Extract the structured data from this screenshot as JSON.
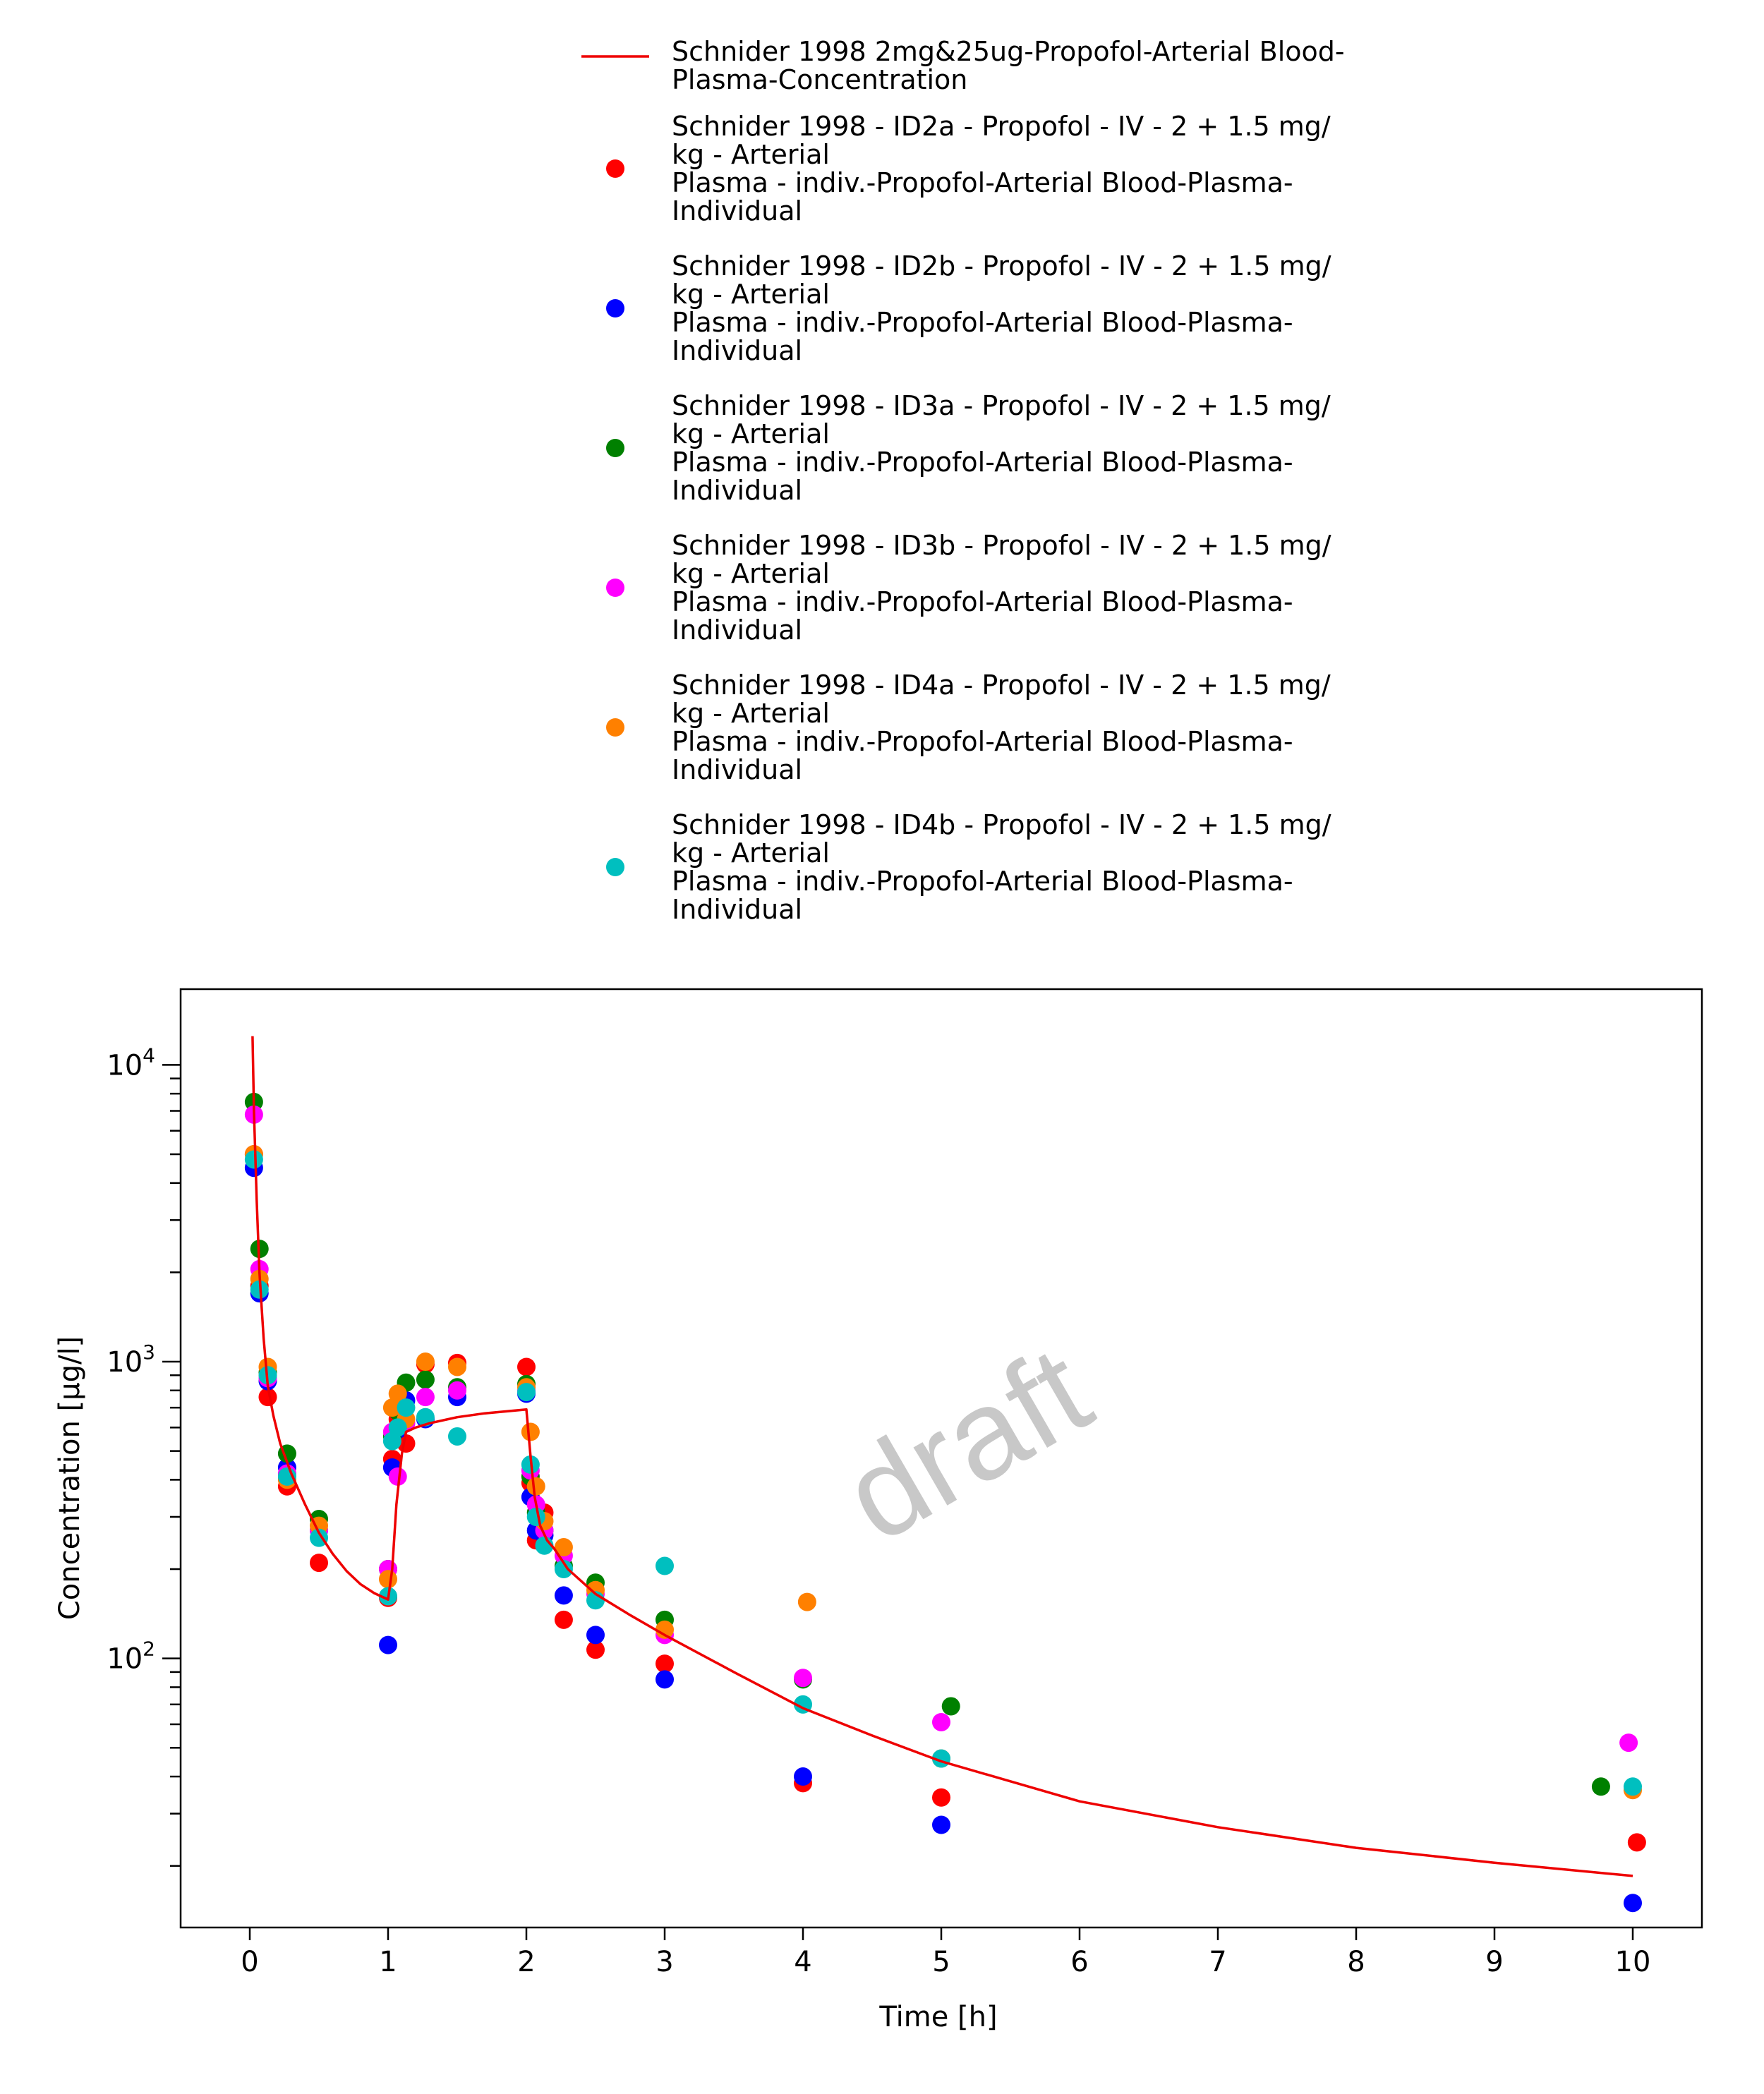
{
  "chart_data": {
    "type": "scatter",
    "title": "",
    "xlabel": "Time [h]",
    "ylabel": "Concentration [µg/l]",
    "x_scale": "linear",
    "y_scale": "log",
    "xlim": [
      -0.5,
      10.5
    ],
    "ylim": [
      12.4,
      18000
    ],
    "x_ticks": [
      0,
      1,
      2,
      3,
      4,
      5,
      6,
      7,
      8,
      9,
      10
    ],
    "y_ticks": [
      {
        "value": 100,
        "base": "10",
        "exp": "2"
      },
      {
        "value": 1000,
        "base": "10",
        "exp": "3"
      },
      {
        "value": 10000,
        "base": "10",
        "exp": "4"
      }
    ],
    "grid": false,
    "legend_position": "above plot",
    "watermark": "draft",
    "simulation": {
      "name": "Schnider 1998 2mg&25ug-Propofol-Arterial Blood-Plasma-Concentration",
      "legend_lines": [
        "Schnider 1998 2mg&25ug-Propofol-Arterial Blood-",
        "Plasma-Concentration"
      ],
      "color": "#ee0000",
      "x": [
        0.02,
        0.03,
        0.05,
        0.07,
        0.1,
        0.13,
        0.17,
        0.22,
        0.3,
        0.4,
        0.5,
        0.6,
        0.7,
        0.8,
        0.9,
        1.0,
        1.03,
        1.06,
        1.1,
        1.13,
        1.2,
        1.3,
        1.5,
        1.7,
        1.85,
        2.0,
        2.03,
        2.06,
        2.1,
        2.15,
        2.2,
        2.3,
        2.5,
        2.75,
        3.0,
        3.5,
        4.0,
        4.5,
        5.0,
        6.0,
        7.0,
        8.0,
        9.0,
        10.0
      ],
      "y": [
        12500,
        7000,
        3500,
        2000,
        1200,
        830,
        660,
        530,
        420,
        330,
        265,
        225,
        197,
        178,
        166,
        158,
        200,
        330,
        490,
        580,
        600,
        620,
        650,
        670,
        680,
        690,
        480,
        350,
        280,
        250,
        235,
        200,
        165,
        140,
        120,
        90,
        68,
        55,
        45,
        33,
        27,
        23,
        20.5,
        18.5
      ]
    },
    "series": [
      {
        "name": "Schnider 1998 - ID2a - Propofol - IV - 2 + 1.5 mg/kg - Arterial Plasma - indiv.-Propofol-Arterial Blood-Plasma-Individual",
        "legend_lines": [
          "Schnider 1998 - ID2a - Propofol - IV - 2 + 1.5 mg/",
          "kg - Arterial",
          "Plasma - indiv.-Propofol-Arterial Blood-Plasma-",
          "Individual"
        ],
        "color": "#ff0000",
        "x": [
          0.03,
          0.07,
          0.13,
          0.27,
          0.5,
          1.0,
          1.03,
          1.07,
          1.13,
          1.27,
          1.5,
          2.0,
          2.03,
          2.07,
          2.13,
          2.27,
          2.5,
          3.0,
          4.0,
          5.0,
          10.03
        ],
        "y": [
          5000,
          1800,
          760,
          380,
          210,
          160,
          470,
          640,
          530,
          980,
          990,
          960,
          390,
          250,
          310,
          135,
          107,
          96,
          38,
          34,
          24
        ]
      },
      {
        "name": "Schnider 1998 - ID2b - Propofol - IV - 2 + 1.5 mg/kg - Arterial Plasma - indiv.-Propofol-Arterial Blood-Plasma-Individual",
        "legend_lines": [
          "Schnider 1998 - ID2b - Propofol - IV - 2 + 1.5 mg/",
          "kg - Arterial",
          "Plasma - indiv.-Propofol-Arterial Blood-Plasma-",
          "Individual"
        ],
        "color": "#0000ff",
        "x": [
          0.03,
          0.07,
          0.13,
          0.27,
          0.5,
          1.0,
          1.03,
          1.07,
          1.13,
          1.27,
          1.5,
          2.0,
          2.03,
          2.07,
          2.13,
          2.27,
          2.5,
          3.0,
          4.0,
          5.0,
          10.0
        ],
        "y": [
          4500,
          1700,
          860,
          440,
          270,
          111,
          440,
          590,
          740,
          640,
          760,
          780,
          350,
          270,
          260,
          163,
          120,
          85,
          40,
          27.5,
          15
        ]
      },
      {
        "name": "Schnider 1998 - ID3a - Propofol - IV - 2 + 1.5 mg/kg - Arterial Plasma - indiv.-Propofol-Arterial Blood-Plasma-Individual",
        "legend_lines": [
          "Schnider 1998 - ID3a - Propofol - IV - 2 + 1.5 mg/",
          "kg - Arterial",
          "Plasma - indiv.-Propofol-Arterial Blood-Plasma-",
          "Individual"
        ],
        "color": "#008000",
        "x": [
          0.03,
          0.07,
          0.13,
          0.27,
          0.5,
          1.0,
          1.03,
          1.07,
          1.13,
          1.27,
          1.5,
          2.0,
          2.03,
          2.07,
          2.13,
          2.27,
          2.5,
          3.0,
          4.0,
          5.07,
          9.77
        ],
        "y": [
          7500,
          2400,
          920,
          490,
          295,
          200,
          560,
          680,
          850,
          870,
          820,
          840,
          410,
          310,
          270,
          205,
          180,
          135,
          85,
          69,
          37
        ]
      },
      {
        "name": "Schnider 1998 - ID3b - Propofol - IV - 2 + 1.5 mg/kg - Arterial Plasma - indiv.-Propofol-Arterial Blood-Plasma-Individual",
        "legend_lines": [
          "Schnider 1998 - ID3b - Propofol - IV - 2 + 1.5 mg/",
          "kg - Arterial",
          "Plasma - indiv.-Propofol-Arterial Blood-Plasma-",
          "Individual"
        ],
        "color": "#ff00ff",
        "x": [
          0.03,
          0.07,
          0.13,
          0.27,
          0.5,
          1.0,
          1.03,
          1.07,
          1.13,
          1.27,
          1.5,
          2.0,
          2.03,
          2.07,
          2.13,
          2.27,
          2.5,
          3.0,
          4.0,
          5.0,
          9.97
        ],
        "y": [
          6800,
          2050,
          880,
          420,
          270,
          200,
          580,
          410,
          620,
          760,
          800,
          800,
          430,
          330,
          270,
          222,
          165,
          120,
          86,
          61,
          52
        ]
      },
      {
        "name": "Schnider 1998 - ID4a - Propofol - IV - 2 + 1.5 mg/kg - Arterial Plasma - indiv.-Propofol-Arterial Blood-Plasma-Individual",
        "legend_lines": [
          "Schnider 1998 - ID4a - Propofol - IV - 2 + 1.5 mg/",
          "kg - Arterial",
          "Plasma - indiv.-Propofol-Arterial Blood-Plasma-",
          "Individual"
        ],
        "color": "#ff8000",
        "x": [
          0.03,
          0.07,
          0.13,
          0.27,
          0.5,
          1.0,
          1.03,
          1.07,
          1.13,
          1.27,
          1.5,
          2.0,
          2.03,
          2.07,
          2.13,
          2.27,
          2.5,
          3.0,
          4.03,
          5.0,
          10.0
        ],
        "y": [
          5000,
          1900,
          960,
          400,
          280,
          185,
          700,
          780,
          640,
          1000,
          960,
          820,
          580,
          380,
          290,
          237,
          170,
          125,
          155,
          46,
          36
        ]
      },
      {
        "name": "Schnider 1998 - ID4b - Propofol - IV - 2 + 1.5 mg/kg - Arterial Plasma - indiv.-Propofol-Arterial Blood-Plasma-Individual",
        "legend_lines": [
          "Schnider 1998 - ID4b - Propofol - IV - 2 + 1.5 mg/",
          "kg - Arterial",
          "Plasma - indiv.-Propofol-Arterial Blood-Plasma-",
          "Individual"
        ],
        "color": "#00bfbf",
        "x": [
          0.03,
          0.07,
          0.13,
          0.27,
          0.5,
          1.0,
          1.03,
          1.07,
          1.13,
          1.27,
          1.5,
          2.0,
          2.03,
          2.07,
          2.13,
          2.27,
          2.5,
          3.0,
          4.0,
          5.0,
          10.0
        ],
        "y": [
          4800,
          1750,
          900,
          410,
          255,
          162,
          540,
          600,
          700,
          650,
          560,
          790,
          450,
          300,
          240,
          200,
          157,
          205,
          70,
          46,
          37
        ]
      }
    ]
  }
}
